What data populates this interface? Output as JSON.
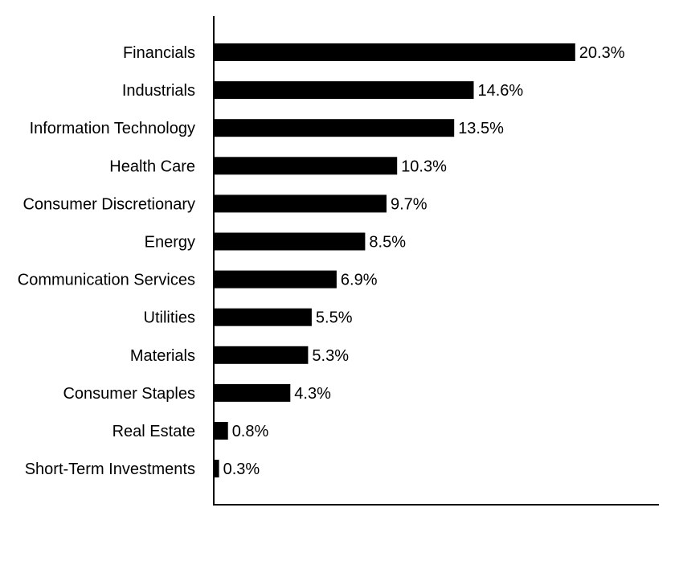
{
  "chart_data": {
    "type": "bar",
    "orientation": "horizontal",
    "categories": [
      "Financials",
      "Industrials",
      "Information Technology",
      "Health Care",
      "Consumer Discretionary",
      "Energy",
      "Communication Services",
      "Utilities",
      "Materials",
      "Consumer Staples",
      "Real Estate",
      "Short-Term Investments"
    ],
    "values": [
      20.3,
      14.6,
      13.5,
      10.3,
      9.7,
      8.5,
      6.9,
      5.5,
      5.3,
      4.3,
      0.8,
      0.3
    ],
    "value_labels": [
      "20.3%",
      "14.6%",
      "13.5%",
      "10.3%",
      "9.7%",
      "8.5%",
      "6.9%",
      "5.5%",
      "5.3%",
      "4.3%",
      "0.8%",
      "0.3%"
    ],
    "xlim": [
      0,
      25
    ],
    "grid": false,
    "legend": "none",
    "bar_color": "#000000"
  }
}
